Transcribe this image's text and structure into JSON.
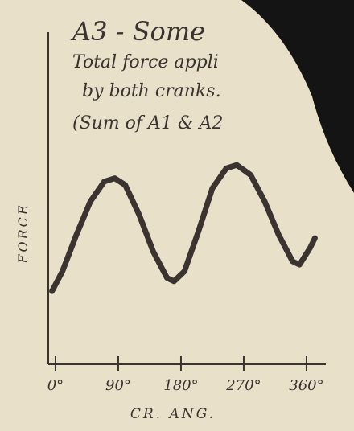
{
  "chart_data": {
    "type": "line",
    "title": "A3 - Some",
    "subtitle": [
      "Total force appli",
      "by both cranks.",
      "(Sum of A1 & A2"
    ],
    "xlabel": "CR. ANG.",
    "ylabel": "FORCE",
    "x": [
      -5,
      10,
      30,
      50,
      70,
      85,
      100,
      120,
      140,
      160,
      170,
      185,
      205,
      225,
      245,
      260,
      280,
      300,
      320,
      340,
      350,
      365,
      372
    ],
    "values": [
      2.2,
      2.8,
      3.9,
      4.9,
      5.5,
      5.6,
      5.4,
      4.5,
      3.4,
      2.6,
      2.5,
      2.8,
      4.0,
      5.3,
      5.9,
      6.0,
      5.7,
      4.9,
      3.9,
      3.1,
      3.0,
      3.5,
      3.8
    ],
    "color": "#3a3330",
    "xlim": [
      -10,
      380
    ],
    "ylim": [
      0,
      10
    ],
    "xticks": [
      {
        "value": 0,
        "label": "0°"
      },
      {
        "value": 90,
        "label": "90°"
      },
      {
        "value": 180,
        "label": "180°"
      },
      {
        "value": 270,
        "label": "270°"
      },
      {
        "value": 360,
        "label": "360°"
      }
    ]
  }
}
